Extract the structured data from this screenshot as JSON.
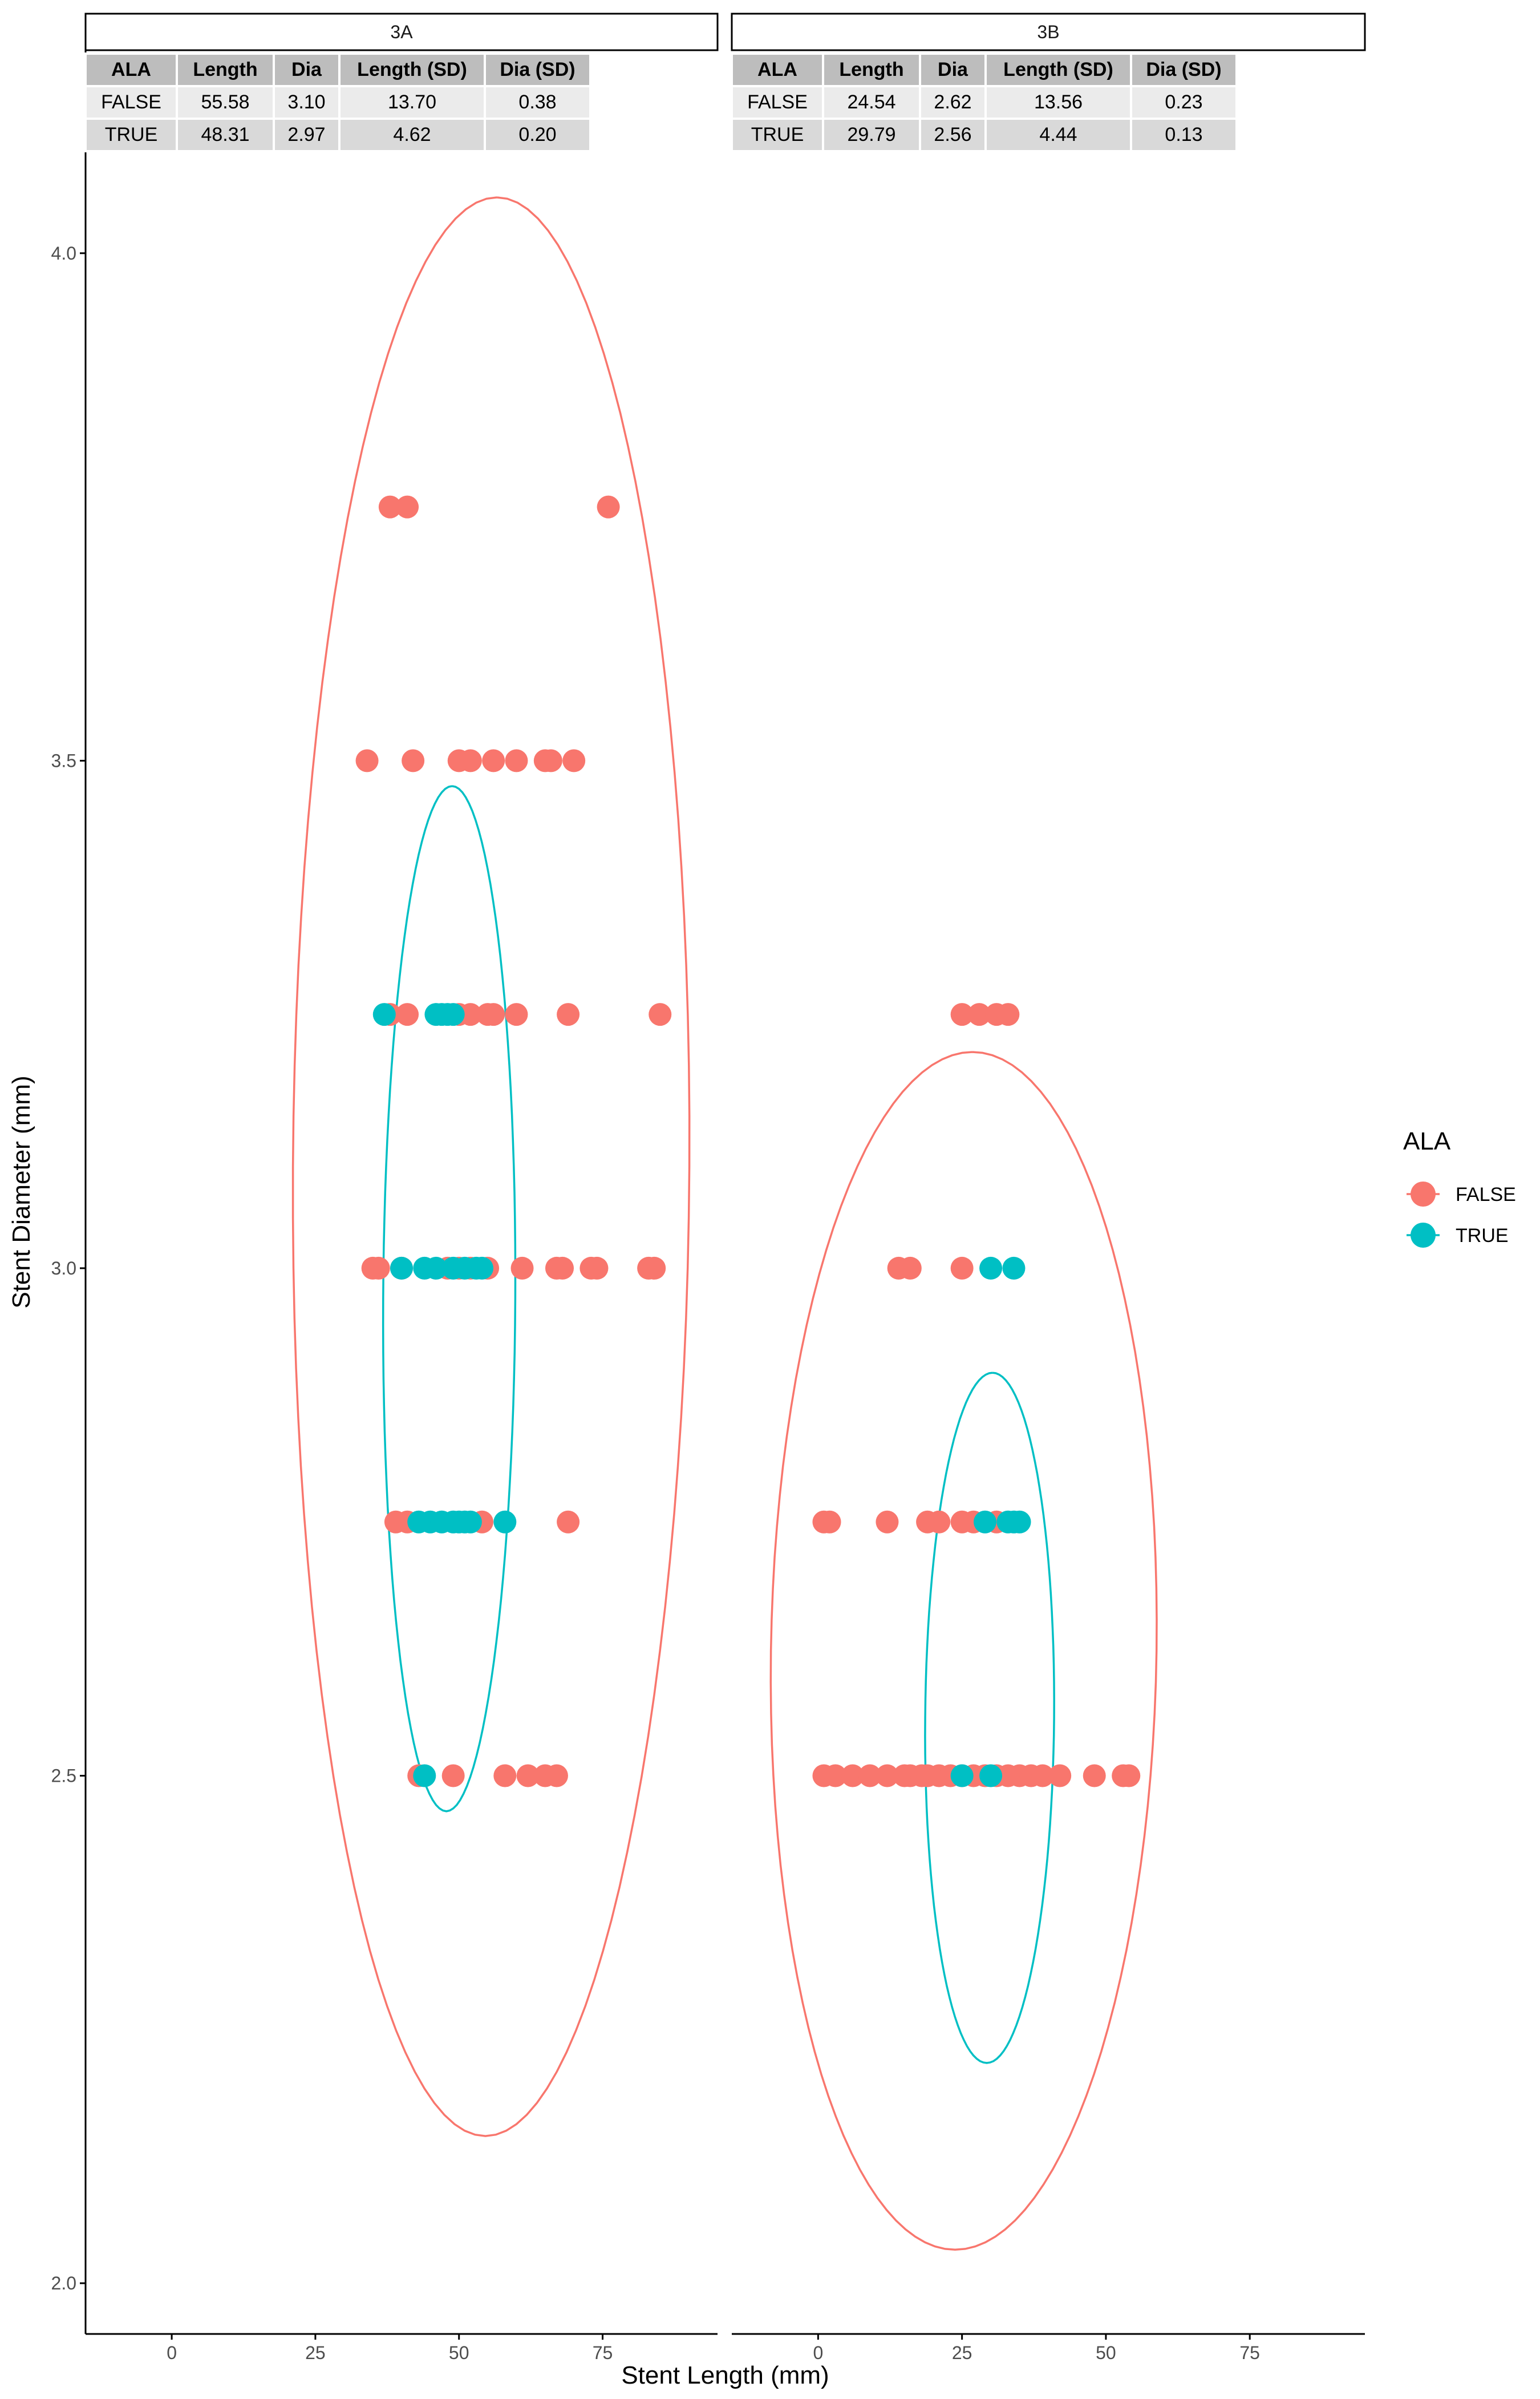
{
  "colors": {
    "false_series": "#F8766D",
    "true_series": "#00BFC4",
    "strip_bg": "#ffffff",
    "table_header_bg": "#bdbdbd",
    "table_row1_bg": "#ebebeb",
    "table_row2_bg": "#d9d9d9",
    "axis": "#000000",
    "tick_label": "#4d4d4d"
  },
  "chart_data": {
    "type": "scatter",
    "xlabel": "Stent Length (mm)",
    "ylabel": "Stent Diameter (mm)",
    "xlim": [
      -15,
      95
    ],
    "ylim": [
      1.95,
      4.2
    ],
    "x_ticks": [
      0,
      25,
      50,
      75
    ],
    "y_ticks": [
      2.0,
      2.5,
      3.0,
      3.5,
      4.0
    ],
    "y_tick_labels": [
      "2.0",
      "2.5",
      "3.0",
      "3.5",
      "4.0"
    ],
    "grid": false,
    "legend": {
      "title": "ALA",
      "placement": "right",
      "entries": [
        {
          "label": "FALSE",
          "color": "#F8766D"
        },
        {
          "label": "TRUE",
          "color": "#00BFC4"
        }
      ]
    },
    "panels": [
      {
        "title": "3A",
        "table": {
          "headers": [
            "ALA",
            "Length",
            "Dia",
            "Length (SD)",
            "Dia (SD)"
          ],
          "rows": [
            [
              "FALSE",
              "55.58",
              "3.10",
              "13.70",
              "0.38"
            ],
            [
              "TRUE",
              "48.31",
              "2.97",
              "4.62",
              "0.20"
            ]
          ]
        },
        "ellipses": [
          {
            "series": "FALSE",
            "cx": 55.6,
            "cy": 3.1,
            "rx": 34.5,
            "ry": 0.955,
            "tilt": 0.02
          },
          {
            "series": "TRUE",
            "cx": 48.3,
            "cy": 2.97,
            "rx": 11.5,
            "ry": 0.505,
            "tilt": 0.01
          }
        ],
        "series": [
          {
            "name": "FALSE",
            "points": [
              [
                38,
                3.75
              ],
              [
                41,
                3.75
              ],
              [
                76,
                3.75
              ],
              [
                34,
                3.5
              ],
              [
                42,
                3.5
              ],
              [
                50,
                3.5
              ],
              [
                52,
                3.5
              ],
              [
                56,
                3.5
              ],
              [
                60,
                3.5
              ],
              [
                65,
                3.5
              ],
              [
                66,
                3.5
              ],
              [
                70,
                3.5
              ],
              [
                38,
                3.25
              ],
              [
                41,
                3.25
              ],
              [
                50,
                3.25
              ],
              [
                52,
                3.25
              ],
              [
                55,
                3.25
              ],
              [
                56,
                3.25
              ],
              [
                60,
                3.25
              ],
              [
                69,
                3.25
              ],
              [
                85,
                3.25
              ],
              [
                35,
                3.0
              ],
              [
                36,
                3.0
              ],
              [
                40,
                3.0
              ],
              [
                48,
                3.0
              ],
              [
                50,
                3.0
              ],
              [
                52,
                3.0
              ],
              [
                55,
                3.0
              ],
              [
                61,
                3.0
              ],
              [
                67,
                3.0
              ],
              [
                68,
                3.0
              ],
              [
                73,
                3.0
              ],
              [
                74,
                3.0
              ],
              [
                83,
                3.0
              ],
              [
                84,
                3.0
              ],
              [
                39,
                2.75
              ],
              [
                41,
                2.75
              ],
              [
                54,
                2.75
              ],
              [
                69,
                2.75
              ],
              [
                43,
                2.5
              ],
              [
                49,
                2.5
              ],
              [
                58,
                2.5
              ],
              [
                62,
                2.5
              ],
              [
                65,
                2.5
              ],
              [
                67,
                2.5
              ]
            ]
          },
          {
            "name": "TRUE",
            "points": [
              [
                37,
                3.25
              ],
              [
                46,
                3.25
              ],
              [
                47,
                3.25
              ],
              [
                48,
                3.25
              ],
              [
                49,
                3.25
              ],
              [
                40,
                3.0
              ],
              [
                44,
                3.0
              ],
              [
                46,
                3.0
              ],
              [
                49,
                3.0
              ],
              [
                51,
                3.0
              ],
              [
                53,
                3.0
              ],
              [
                54,
                3.0
              ],
              [
                43,
                2.75
              ],
              [
                45,
                2.75
              ],
              [
                47,
                2.75
              ],
              [
                49,
                2.75
              ],
              [
                50,
                2.75
              ],
              [
                51,
                2.75
              ],
              [
                52,
                2.75
              ],
              [
                58,
                2.75
              ],
              [
                44,
                2.5
              ]
            ]
          }
        ]
      },
      {
        "title": "3B",
        "table": {
          "headers": [
            "ALA",
            "Length",
            "Dia",
            "Length (SD)",
            "Dia (SD)"
          ],
          "rows": [
            [
              "FALSE",
              "24.54",
              "2.62",
              "13.56",
              "0.23"
            ],
            [
              "TRUE",
              "29.79",
              "2.56",
              "4.44",
              "0.13"
            ]
          ]
        },
        "ellipses": [
          {
            "series": "FALSE",
            "cx": 25.3,
            "cy": 2.623,
            "rx": 33.5,
            "ry": 0.59,
            "tilt": 0.03
          },
          {
            "series": "TRUE",
            "cx": 29.8,
            "cy": 2.557,
            "rx": 11.2,
            "ry": 0.34,
            "tilt": 0.01
          }
        ],
        "series": [
          {
            "name": "FALSE",
            "points": [
              [
                25,
                3.25
              ],
              [
                28,
                3.25
              ],
              [
                31,
                3.25
              ],
              [
                33,
                3.25
              ],
              [
                14,
                3.0
              ],
              [
                16,
                3.0
              ],
              [
                25,
                3.0
              ],
              [
                1,
                2.75
              ],
              [
                2,
                2.75
              ],
              [
                12,
                2.75
              ],
              [
                19,
                2.75
              ],
              [
                21,
                2.75
              ],
              [
                25,
                2.75
              ],
              [
                27,
                2.75
              ],
              [
                31,
                2.75
              ],
              [
                1,
                2.5
              ],
              [
                3,
                2.5
              ],
              [
                6,
                2.5
              ],
              [
                9,
                2.5
              ],
              [
                12,
                2.5
              ],
              [
                15,
                2.5
              ],
              [
                16,
                2.5
              ],
              [
                18,
                2.5
              ],
              [
                19,
                2.5
              ],
              [
                21,
                2.5
              ],
              [
                23,
                2.5
              ],
              [
                25,
                2.5
              ],
              [
                27,
                2.5
              ],
              [
                29,
                2.5
              ],
              [
                31,
                2.5
              ],
              [
                33,
                2.5
              ],
              [
                35,
                2.5
              ],
              [
                37,
                2.5
              ],
              [
                39,
                2.5
              ],
              [
                42,
                2.5
              ],
              [
                48,
                2.5
              ],
              [
                53,
                2.5
              ],
              [
                54,
                2.5
              ]
            ]
          },
          {
            "name": "TRUE",
            "points": [
              [
                30,
                3.0
              ],
              [
                34,
                3.0
              ],
              [
                29,
                2.75
              ],
              [
                33,
                2.75
              ],
              [
                34,
                2.75
              ],
              [
                35,
                2.75
              ],
              [
                25,
                2.5
              ],
              [
                30,
                2.5
              ]
            ]
          }
        ]
      }
    ]
  }
}
